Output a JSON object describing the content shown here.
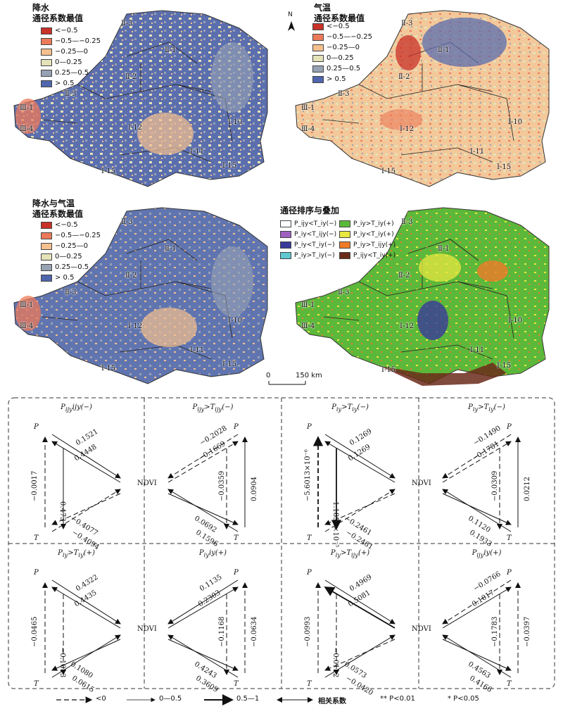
{
  "maps": [
    {
      "title_line1": "降水",
      "title_line2": "通径系数最值",
      "legend": [
        {
          "label": "<−0.5",
          "color": "#c83228"
        },
        {
          "label": "−0.5—−0.25",
          "color": "#ec7a5a"
        },
        {
          "label": "−0.25—0",
          "color": "#f6c08e"
        },
        {
          "label": "0—0.25",
          "color": "#e4e2b8"
        },
        {
          "label": "0.25—0.5",
          "color": "#97a2b4"
        },
        {
          "label": "> 0.5",
          "color": "#4f66ae"
        }
      ],
      "base_color": "#5b6eae"
    },
    {
      "title_line1": "气温",
      "title_line2": "通径系数最值",
      "legend": [
        {
          "label": "<−0.5",
          "color": "#c83228"
        },
        {
          "label": "−0.5—−0.25",
          "color": "#ec7a5a"
        },
        {
          "label": "−0.25—0",
          "color": "#f6c08e"
        },
        {
          "label": "0—0.25",
          "color": "#e4e2b8"
        },
        {
          "label": "0.25—0.5",
          "color": "#97a2b4"
        },
        {
          "label": "> 0.5",
          "color": "#4f66ae"
        }
      ],
      "base_color": "#f3c89a",
      "north_label": "N"
    },
    {
      "title_line1": "降水与气温",
      "title_line2": "通径系数最值",
      "legend": [
        {
          "label": "<−0.5",
          "color": "#c83228"
        },
        {
          "label": "−0.5—−0.25",
          "color": "#ec7a5a"
        },
        {
          "label": "−0.25—0",
          "color": "#f6c08e"
        },
        {
          "label": "0—0.25",
          "color": "#e4e2b8"
        },
        {
          "label": "0.25—0.5",
          "color": "#97a2b4"
        },
        {
          "label": "> 0.5",
          "color": "#4f66ae"
        }
      ],
      "base_color": "#6075b0"
    },
    {
      "title_line1": "通径排序与叠加",
      "legend_col1": [
        {
          "label": "P_ijy<T_iy(−)",
          "color": "#ffffff"
        },
        {
          "label": "P_iy<T_ijy(−)",
          "color": "#a060c0"
        },
        {
          "label": "P_iy<T_iy(−)",
          "color": "#3a3a9a"
        },
        {
          "label": "P_iy>T_iy(−)",
          "color": "#60c8d0"
        }
      ],
      "legend_col2": [
        {
          "label": "P_iy>T_iy(+)",
          "color": "#5cb83a"
        },
        {
          "label": "P_iy<T_iy(+)",
          "color": "#e8e840"
        },
        {
          "label": "P_iy>T_ijy(+)",
          "color": "#f07a2a"
        },
        {
          "label": "P_ijy<T_iy(+)",
          "color": "#6a2a1a"
        }
      ],
      "base_color": "#5cb83a"
    }
  ],
  "region_labels": [
    "Ⅱ-3",
    "Ⅱ-1",
    "Ⅱ-2",
    "Ⅱ-3",
    "Ⅲ-1",
    "Ⅲ-4",
    "Ⅰ-12",
    "Ⅰ-10",
    "Ⅰ-11",
    "Ⅰ-15",
    "Ⅰ-15"
  ],
  "scalebar": {
    "start": "0",
    "end": "150 km"
  },
  "panels": [
    {
      "title": "P_ijy<T_ijy(−)",
      "pn": "0.1521",
      "np": "0.4448",
      "pt": "−0.0017",
      "pt2": "0.473",
      "tn": "−0.4077",
      "nt": "−0.4094",
      "side": "left"
    },
    {
      "title": "P_ijy>T_ijy(−)",
      "pn": "−0.2028",
      "np": "−0.1669",
      "pt": "0.0904",
      "pt2": "−0.0359",
      "tn": "0.0692",
      "nt": "0.1596",
      "side": "right"
    },
    {
      "title": "P_iy>T_iy(−)",
      "pn": "0.1269",
      "np": "0.1269",
      "pt": "−5.6013×10⁻⁶",
      "pt2": "1.1891×10⁻⁵",
      "tn": "−0.2461",
      "nt": "−0.2461",
      "side": "left"
    },
    {
      "title": "P_iy>T_iy(−)",
      "pn": "−0.1490",
      "np": "−0.1781",
      "pt": "0.0212",
      "pt2": "−0.0309",
      "tn": "0.1120",
      "nt": "0.1933",
      "side": "right"
    },
    {
      "title": "P_iy>T_iy(+)",
      "pn": "0.4322",
      "np": "0.4435",
      "pt": "−0.0465",
      "pt2": "−0.1013",
      "tn": "0.1080",
      "nt": "0.0615",
      "side": "left"
    },
    {
      "title": "P_iy<T_iy(+)",
      "pn": "0.1135",
      "np": "0.2303",
      "pt": "−0.0634",
      "pt2": "−0.1168",
      "tn": "0.4243",
      "nt": "0.3609",
      "side": "right"
    },
    {
      "title": "P_iy>T_ijy(+)",
      "pn": "0.4969",
      "np": "0.5081",
      "pt": "−0.0993",
      "pt2": "−0.0112",
      "tn": "0.0573",
      "nt": "−0.0420",
      "side": "left"
    },
    {
      "title": "P_ijy<T_iy(+)",
      "pn": "−0.0766",
      "np": "0.1017",
      "pt": "−0.0397",
      "pt2": "−0.1783",
      "tn": "0.4563",
      "nt": "0.4166",
      "side": "right"
    }
  ],
  "node_labels": {
    "p": "P",
    "t": "T",
    "ndvi": "NDVI"
  },
  "bottom_legend": {
    "dashed": "<0",
    "thin": "0—0.5",
    "thick": "0.5—1",
    "double": "相关系数",
    "p01": "** P<0.01",
    "p05": "* P<0.05"
  }
}
